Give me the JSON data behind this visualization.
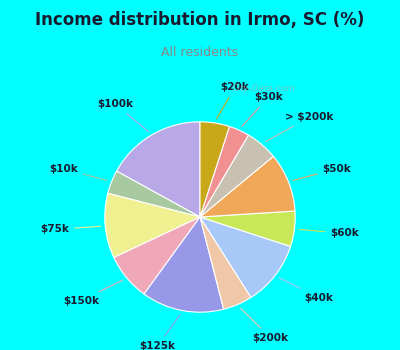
{
  "title": "Income distribution in Irmo, SC (%)",
  "subtitle": "All residents",
  "title_color": "#1a1a2e",
  "subtitle_color": "#888888",
  "background_color": "#00FFFF",
  "chart_bg_gradient_top": "#d0f0f0",
  "chart_bg_gradient_bottom": "#d8f5d8",
  "watermark": "City-Data.com",
  "labels": [
    "$100k",
    "$10k",
    "$75k",
    "$150k",
    "$125k",
    "$200k",
    "$40k",
    "$60k",
    "$50k",
    "> $200k",
    "$30k",
    "$20k"
  ],
  "values": [
    17.0,
    4.0,
    11.0,
    8.0,
    14.0,
    5.0,
    11.0,
    6.0,
    10.0,
    5.5,
    3.5,
    5.0
  ],
  "colors": [
    "#b8a8e8",
    "#a8c8a0",
    "#f0f090",
    "#f0a8b8",
    "#9898e8",
    "#f0c8a8",
    "#a8c8f8",
    "#c8e858",
    "#f0a858",
    "#c8c0b0",
    "#f09090",
    "#c8a818"
  ],
  "startangle": 90,
  "label_fontsize": 7.5,
  "title_fontsize": 12,
  "subtitle_fontsize": 9
}
